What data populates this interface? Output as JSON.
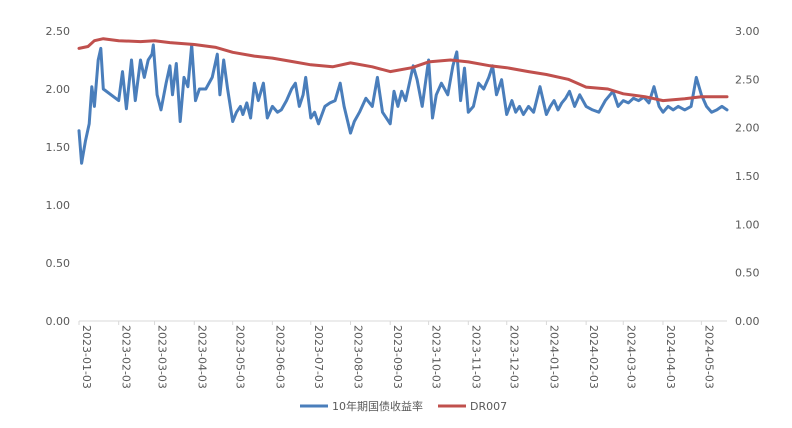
{
  "chart_data": {
    "type": "line",
    "title": "",
    "xlabel": "",
    "ylabel": "",
    "x_tick_labels": [
      "2023-01-03",
      "2023-02-03",
      "2023-03-03",
      "2023-04-03",
      "2023-05-03",
      "2023-06-03",
      "2023-07-03",
      "2023-08-03",
      "2023-09-03",
      "2023-10-03",
      "2023-11-03",
      "2023-12-03",
      "2024-01-03",
      "2024-02-03",
      "2024-03-03",
      "2024-04-03",
      "2024-05-03"
    ],
    "y_left": {
      "range": [
        0,
        2.5
      ],
      "ticks": [
        "0.00",
        "0.50",
        "1.00",
        "1.50",
        "2.00",
        "2.50"
      ]
    },
    "y_right": {
      "range": [
        0,
        3.0
      ],
      "ticks": [
        "0.00",
        "0.50",
        "1.00",
        "1.50",
        "2.00",
        "2.50",
        "3.00"
      ]
    },
    "grid": false,
    "legend_position": "bottom",
    "series": [
      {
        "name": "10年期国债收益率",
        "axis": "left",
        "color": "#4a7ebb",
        "points": [
          [
            "2023-01-03",
            1.64
          ],
          [
            "2023-01-05",
            1.36
          ],
          [
            "2023-01-08",
            1.55
          ],
          [
            "2023-01-11",
            1.7
          ],
          [
            "2023-01-13",
            2.02
          ],
          [
            "2023-01-15",
            1.85
          ],
          [
            "2023-01-18",
            2.25
          ],
          [
            "2023-01-20",
            2.35
          ],
          [
            "2023-01-22",
            2.0
          ],
          [
            "2023-02-03",
            1.9
          ],
          [
            "2023-02-06",
            2.15
          ],
          [
            "2023-02-09",
            1.83
          ],
          [
            "2023-02-13",
            2.25
          ],
          [
            "2023-02-16",
            1.9
          ],
          [
            "2023-02-20",
            2.25
          ],
          [
            "2023-02-23",
            2.1
          ],
          [
            "2023-02-26",
            2.25
          ],
          [
            "2023-03-01",
            2.3
          ],
          [
            "2023-03-02",
            2.38
          ],
          [
            "2023-03-05",
            1.95
          ],
          [
            "2023-03-08",
            1.82
          ],
          [
            "2023-03-12",
            2.05
          ],
          [
            "2023-03-15",
            2.2
          ],
          [
            "2023-03-17",
            1.95
          ],
          [
            "2023-03-20",
            2.22
          ],
          [
            "2023-03-23",
            1.72
          ],
          [
            "2023-03-26",
            2.1
          ],
          [
            "2023-03-29",
            2.02
          ],
          [
            "2023-04-01",
            2.38
          ],
          [
            "2023-04-04",
            1.9
          ],
          [
            "2023-04-07",
            2.0
          ],
          [
            "2023-04-12",
            2.0
          ],
          [
            "2023-04-17",
            2.1
          ],
          [
            "2023-04-21",
            2.3
          ],
          [
            "2023-04-23",
            1.95
          ],
          [
            "2023-04-26",
            2.25
          ],
          [
            "2023-04-29",
            2.0
          ],
          [
            "2023-05-03",
            1.72
          ],
          [
            "2023-05-06",
            1.8
          ],
          [
            "2023-05-09",
            1.85
          ],
          [
            "2023-05-11",
            1.78
          ],
          [
            "2023-05-14",
            1.88
          ],
          [
            "2023-05-17",
            1.75
          ],
          [
            "2023-05-20",
            2.05
          ],
          [
            "2023-05-23",
            1.9
          ],
          [
            "2023-05-27",
            2.05
          ],
          [
            "2023-05-30",
            1.75
          ],
          [
            "2023-06-03",
            1.85
          ],
          [
            "2023-06-07",
            1.8
          ],
          [
            "2023-06-10",
            1.82
          ],
          [
            "2023-06-14",
            1.9
          ],
          [
            "2023-06-18",
            2.0
          ],
          [
            "2023-06-21",
            2.05
          ],
          [
            "2023-06-24",
            1.85
          ],
          [
            "2023-06-27",
            1.95
          ],
          [
            "2023-06-29",
            2.1
          ],
          [
            "2023-07-03",
            1.75
          ],
          [
            "2023-07-06",
            1.8
          ],
          [
            "2023-07-09",
            1.7
          ],
          [
            "2023-07-14",
            1.85
          ],
          [
            "2023-07-18",
            1.88
          ],
          [
            "2023-07-22",
            1.9
          ],
          [
            "2023-07-26",
            2.05
          ],
          [
            "2023-07-29",
            1.85
          ],
          [
            "2023-08-03",
            1.62
          ],
          [
            "2023-08-06",
            1.72
          ],
          [
            "2023-08-10",
            1.8
          ],
          [
            "2023-08-15",
            1.92
          ],
          [
            "2023-08-20",
            1.85
          ],
          [
            "2023-08-24",
            2.1
          ],
          [
            "2023-08-28",
            1.8
          ],
          [
            "2023-09-03",
            1.7
          ],
          [
            "2023-09-06",
            1.98
          ],
          [
            "2023-09-09",
            1.85
          ],
          [
            "2023-09-12",
            1.98
          ],
          [
            "2023-09-15",
            1.9
          ],
          [
            "2023-09-18",
            2.05
          ],
          [
            "2023-09-21",
            2.2
          ],
          [
            "2023-09-24",
            2.08
          ],
          [
            "2023-09-28",
            1.85
          ],
          [
            "2023-10-03",
            2.25
          ],
          [
            "2023-10-06",
            1.75
          ],
          [
            "2023-10-09",
            1.95
          ],
          [
            "2023-10-13",
            2.05
          ],
          [
            "2023-10-18",
            1.95
          ],
          [
            "2023-10-22",
            2.2
          ],
          [
            "2023-10-25",
            2.32
          ],
          [
            "2023-10-28",
            1.9
          ],
          [
            "2023-10-31",
            2.18
          ],
          [
            "2023-11-03",
            1.8
          ],
          [
            "2023-11-07",
            1.85
          ],
          [
            "2023-11-11",
            2.05
          ],
          [
            "2023-11-15",
            2.0
          ],
          [
            "2023-11-19",
            2.1
          ],
          [
            "2023-11-22",
            2.2
          ],
          [
            "2023-11-25",
            1.95
          ],
          [
            "2023-11-29",
            2.08
          ],
          [
            "2023-12-03",
            1.78
          ],
          [
            "2023-12-07",
            1.9
          ],
          [
            "2023-12-10",
            1.8
          ],
          [
            "2023-12-13",
            1.85
          ],
          [
            "2023-12-16",
            1.78
          ],
          [
            "2023-12-20",
            1.85
          ],
          [
            "2023-12-24",
            1.8
          ],
          [
            "2023-12-29",
            2.02
          ],
          [
            "2024-01-03",
            1.78
          ],
          [
            "2024-01-06",
            1.85
          ],
          [
            "2024-01-09",
            1.9
          ],
          [
            "2024-01-12",
            1.82
          ],
          [
            "2024-01-15",
            1.88
          ],
          [
            "2024-01-18",
            1.92
          ],
          [
            "2024-01-21",
            1.98
          ],
          [
            "2024-01-25",
            1.85
          ],
          [
            "2024-01-29",
            1.95
          ],
          [
            "2024-02-03",
            1.85
          ],
          [
            "2024-02-08",
            1.82
          ],
          [
            "2024-02-13",
            1.8
          ],
          [
            "2024-02-18",
            1.9
          ],
          [
            "2024-02-24",
            1.98
          ],
          [
            "2024-02-28",
            1.85
          ],
          [
            "2024-03-03",
            1.9
          ],
          [
            "2024-03-07",
            1.88
          ],
          [
            "2024-03-11",
            1.92
          ],
          [
            "2024-03-15",
            1.9
          ],
          [
            "2024-03-19",
            1.93
          ],
          [
            "2024-03-23",
            1.88
          ],
          [
            "2024-03-27",
            2.02
          ],
          [
            "2024-03-31",
            1.85
          ],
          [
            "2024-04-03",
            1.8
          ],
          [
            "2024-04-07",
            1.85
          ],
          [
            "2024-04-11",
            1.82
          ],
          [
            "2024-04-15",
            1.85
          ],
          [
            "2024-04-20",
            1.82
          ],
          [
            "2024-04-25",
            1.85
          ],
          [
            "2024-04-29",
            2.1
          ],
          [
            "2024-05-03",
            1.95
          ],
          [
            "2024-05-07",
            1.85
          ],
          [
            "2024-05-11",
            1.8
          ],
          [
            "2024-05-15",
            1.82
          ],
          [
            "2024-05-19",
            1.85
          ],
          [
            "2024-05-23",
            1.82
          ]
        ]
      },
      {
        "name": "DR007",
        "axis": "right",
        "color": "#c0504d",
        "points": [
          [
            "2023-01-03",
            2.82
          ],
          [
            "2023-01-10",
            2.84
          ],
          [
            "2023-01-15",
            2.9
          ],
          [
            "2023-01-22",
            2.92
          ],
          [
            "2023-02-03",
            2.9
          ],
          [
            "2023-02-20",
            2.89
          ],
          [
            "2023-03-03",
            2.9
          ],
          [
            "2023-03-15",
            2.88
          ],
          [
            "2023-04-03",
            2.86
          ],
          [
            "2023-04-20",
            2.83
          ],
          [
            "2023-05-03",
            2.78
          ],
          [
            "2023-05-20",
            2.74
          ],
          [
            "2023-06-03",
            2.72
          ],
          [
            "2023-06-20",
            2.68
          ],
          [
            "2023-07-03",
            2.65
          ],
          [
            "2023-07-20",
            2.63
          ],
          [
            "2023-08-03",
            2.67
          ],
          [
            "2023-08-20",
            2.63
          ],
          [
            "2023-09-03",
            2.58
          ],
          [
            "2023-09-20",
            2.62
          ],
          [
            "2023-10-03",
            2.68
          ],
          [
            "2023-10-20",
            2.7
          ],
          [
            "2023-11-03",
            2.68
          ],
          [
            "2023-11-20",
            2.64
          ],
          [
            "2023-12-03",
            2.62
          ],
          [
            "2023-12-20",
            2.58
          ],
          [
            "2024-01-03",
            2.55
          ],
          [
            "2024-01-20",
            2.5
          ],
          [
            "2024-02-03",
            2.42
          ],
          [
            "2024-02-20",
            2.4
          ],
          [
            "2024-03-03",
            2.35
          ],
          [
            "2024-03-20",
            2.32
          ],
          [
            "2024-04-03",
            2.28
          ],
          [
            "2024-04-20",
            2.3
          ],
          [
            "2024-05-03",
            2.32
          ],
          [
            "2024-05-23",
            2.32
          ]
        ]
      }
    ]
  }
}
